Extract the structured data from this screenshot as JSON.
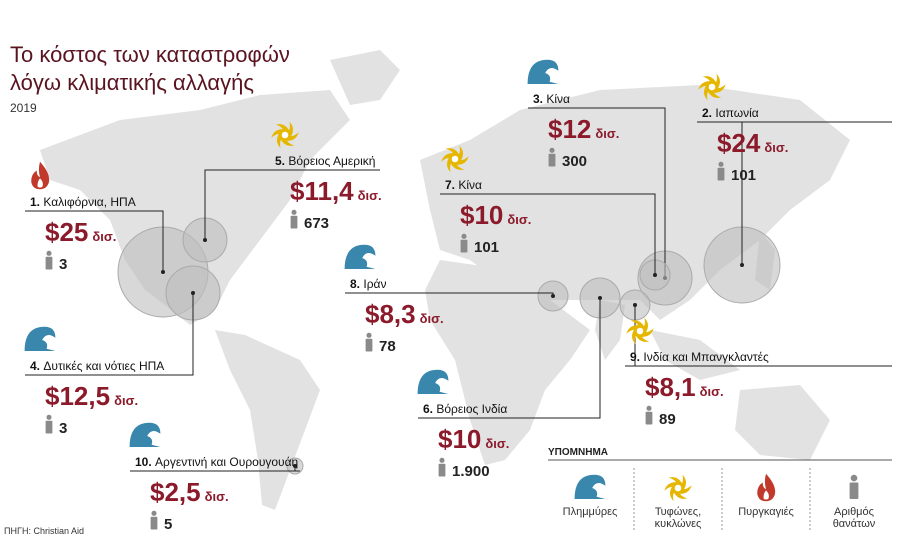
{
  "title_lines": [
    "Το κόστος των καταστροφών",
    "λόγω κλιματικής αλλαγής"
  ],
  "subtitle": "2019",
  "source": "ΠΗΓΗ: Christian Aid",
  "disasters": [
    {
      "rank": "1.",
      "place": "Καλιφόρνια, ΗΠΑ",
      "type": "fire",
      "cost": "$25",
      "unit": "δισ.",
      "deaths": "3"
    },
    {
      "rank": "2.",
      "place": "Ιαπωνία",
      "type": "typhoon",
      "cost": "$24",
      "unit": "δισ.",
      "deaths": "101"
    },
    {
      "rank": "3.",
      "place": "Κίνα",
      "type": "flood",
      "cost": "$12",
      "unit": "δισ.",
      "deaths": "300"
    },
    {
      "rank": "4.",
      "place": "Δυτικές και νότιες ΗΠΑ",
      "type": "flood",
      "cost": "$12,5",
      "unit": "δισ.",
      "deaths": "3"
    },
    {
      "rank": "5.",
      "place": "Βόρειος Αμερική",
      "type": "typhoon",
      "cost": "$11,4",
      "unit": "δισ.",
      "deaths": "673"
    },
    {
      "rank": "6.",
      "place": "Βόρειος Ινδία",
      "type": "flood",
      "cost": "$10",
      "unit": "δισ.",
      "deaths": "1.900"
    },
    {
      "rank": "7.",
      "place": "Κίνα",
      "type": "typhoon",
      "cost": "$10",
      "unit": "δισ.",
      "deaths": "101"
    },
    {
      "rank": "8.",
      "place": "Ιράν",
      "type": "flood",
      "cost": "$8,3",
      "unit": "δισ.",
      "deaths": "78"
    },
    {
      "rank": "9.",
      "place": "Ινδία και Μπανγκλαντές",
      "type": "typhoon",
      "cost": "$8,1",
      "unit": "δισ.",
      "deaths": "89"
    },
    {
      "rank": "10.",
      "place": "Αργεντινή και Ουρουγουάη",
      "type": "flood",
      "cost": "$2,5",
      "unit": "δισ.",
      "deaths": "5"
    }
  ],
  "legend": {
    "title": "ΥΠΟΜΝΗΜΑ",
    "items": [
      {
        "type": "flood",
        "lines": [
          "Πλημμύρες"
        ]
      },
      {
        "type": "typhoon",
        "lines": [
          "Τυφώνες,",
          "κυκλώνες"
        ]
      },
      {
        "type": "fire",
        "lines": [
          "Πυργκαγιές"
        ]
      },
      {
        "type": "person",
        "lines": [
          "Αριθμός",
          "θανάτων"
        ]
      }
    ]
  }
}
